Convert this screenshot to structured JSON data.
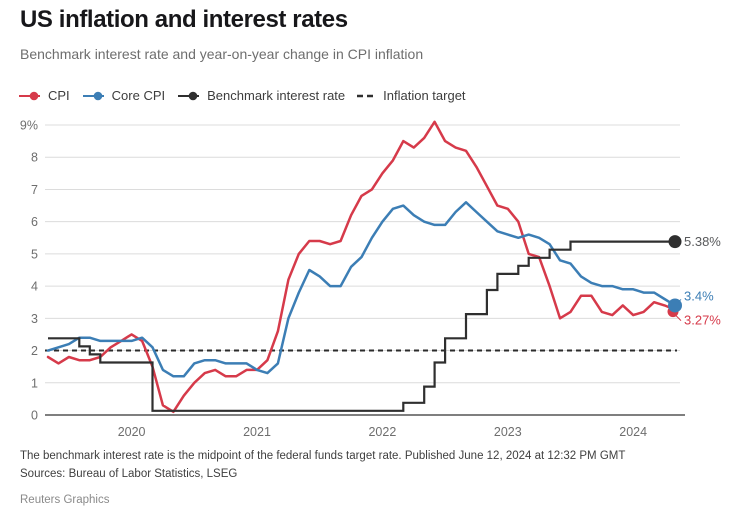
{
  "header": {
    "title": "US inflation and interest rates",
    "subtitle": "Benchmark interest rate and year-on-year change in CPI inflation"
  },
  "legend": [
    {
      "label": "CPI",
      "color": "#d63a4a",
      "style": "line-dot"
    },
    {
      "label": "Core CPI",
      "color": "#3c7eb5",
      "style": "line-dot"
    },
    {
      "label": "Benchmark interest rate",
      "color": "#2f2f2f",
      "style": "line-dot"
    },
    {
      "label": "Inflation target",
      "color": "#2f2f2f",
      "style": "dashed"
    }
  ],
  "chart_data": {
    "type": "line",
    "title": "US inflation and interest rates",
    "x_start": "2019-05",
    "x_end": "2024-05",
    "frequency": "monthly",
    "xtick_labels": [
      "2020",
      "2021",
      "2022",
      "2023",
      "2024"
    ],
    "ytick_labels": [
      "9%",
      "8",
      "7",
      "6",
      "5",
      "4",
      "3",
      "2",
      "1",
      "0"
    ],
    "ylim": [
      0,
      9
    ],
    "grid": true,
    "legend_position": "top",
    "series": [
      {
        "name": "CPI",
        "color": "#d63a4a",
        "values": [
          1.8,
          1.6,
          1.8,
          1.7,
          1.7,
          1.8,
          2.1,
          2.3,
          2.5,
          2.3,
          1.5,
          0.3,
          0.1,
          0.6,
          1.0,
          1.3,
          1.4,
          1.2,
          1.2,
          1.4,
          1.4,
          1.7,
          2.6,
          4.2,
          5.0,
          5.4,
          5.4,
          5.3,
          5.4,
          6.2,
          6.8,
          7.0,
          7.5,
          7.9,
          8.5,
          8.3,
          8.6,
          9.1,
          8.5,
          8.3,
          8.2,
          7.7,
          7.1,
          6.5,
          6.4,
          6.0,
          5.0,
          4.9,
          4.0,
          3.0,
          3.2,
          3.7,
          3.7,
          3.2,
          3.1,
          3.4,
          3.1,
          3.2,
          3.5,
          3.4,
          3.27
        ]
      },
      {
        "name": "Core CPI",
        "color": "#3c7eb5",
        "values": [
          2.0,
          2.1,
          2.2,
          2.4,
          2.4,
          2.3,
          2.3,
          2.3,
          2.3,
          2.4,
          2.1,
          1.4,
          1.2,
          1.2,
          1.6,
          1.7,
          1.7,
          1.6,
          1.6,
          1.6,
          1.4,
          1.3,
          1.6,
          3.0,
          3.8,
          4.5,
          4.3,
          4.0,
          4.0,
          4.6,
          4.9,
          5.5,
          6.0,
          6.4,
          6.5,
          6.2,
          6.0,
          5.9,
          5.9,
          6.3,
          6.6,
          6.3,
          6.0,
          5.7,
          5.6,
          5.5,
          5.6,
          5.5,
          5.3,
          4.8,
          4.7,
          4.3,
          4.1,
          4.0,
          4.0,
          3.9,
          3.9,
          3.8,
          3.8,
          3.6,
          3.4
        ]
      },
      {
        "name": "Benchmark interest rate",
        "color": "#2f2f2f",
        "step": true,
        "values": [
          2.38,
          2.38,
          2.38,
          2.13,
          1.88,
          1.63,
          1.63,
          1.63,
          1.63,
          1.63,
          0.13,
          0.13,
          0.13,
          0.13,
          0.13,
          0.13,
          0.13,
          0.13,
          0.13,
          0.13,
          0.13,
          0.13,
          0.13,
          0.13,
          0.13,
          0.13,
          0.13,
          0.13,
          0.13,
          0.13,
          0.13,
          0.13,
          0.13,
          0.13,
          0.38,
          0.38,
          0.88,
          1.63,
          2.38,
          2.38,
          3.13,
          3.13,
          3.88,
          4.38,
          4.38,
          4.63,
          4.88,
          4.88,
          5.13,
          5.13,
          5.38,
          5.38,
          5.38,
          5.38,
          5.38,
          5.38,
          5.38,
          5.38,
          5.38,
          5.38,
          5.38
        ]
      },
      {
        "name": "Inflation target",
        "color": "#2b2b2b",
        "dashed": true,
        "constant_value": 2
      }
    ],
    "end_labels": [
      {
        "text": "5.38%",
        "value": 5.38,
        "series": "Benchmark interest rate",
        "text_color": "#58595b",
        "dot_color": "#2f2f2f"
      },
      {
        "text": "3.4%",
        "value": 3.4,
        "series": "Core CPI",
        "text_color": "#3c7eb5",
        "dot_color": "#3c7eb5"
      },
      {
        "text": "3.27%",
        "value": 3.27,
        "series": "CPI",
        "text_color": "#d63a4a",
        "dot_color": "#d63a4a"
      }
    ]
  },
  "footer": {
    "note": "The benchmark interest rate is the midpoint of the federal funds target rate. Published June 12, 2024 at 12:32 PM GMT",
    "sources": "Sources: Bureau of Labor Statistics, LSEG",
    "credit": "Reuters Graphics"
  }
}
